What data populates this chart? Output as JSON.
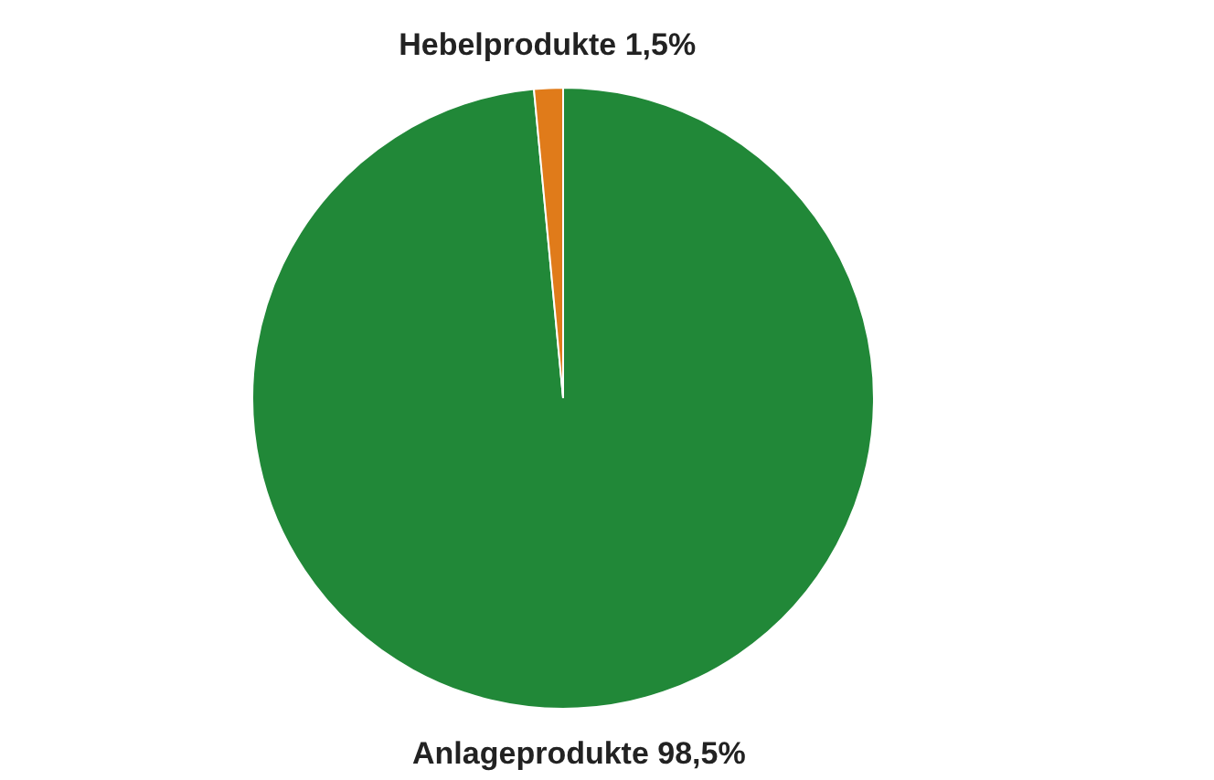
{
  "chart_data": {
    "type": "pie",
    "categories": [
      "Anlageprodukte",
      "Hebelprodukte"
    ],
    "values": [
      98.5,
      1.5
    ],
    "colors": [
      "#218838",
      "#e07b1a"
    ],
    "value_labels": [
      "98,5%",
      "1,5%"
    ],
    "legend": false
  }
}
